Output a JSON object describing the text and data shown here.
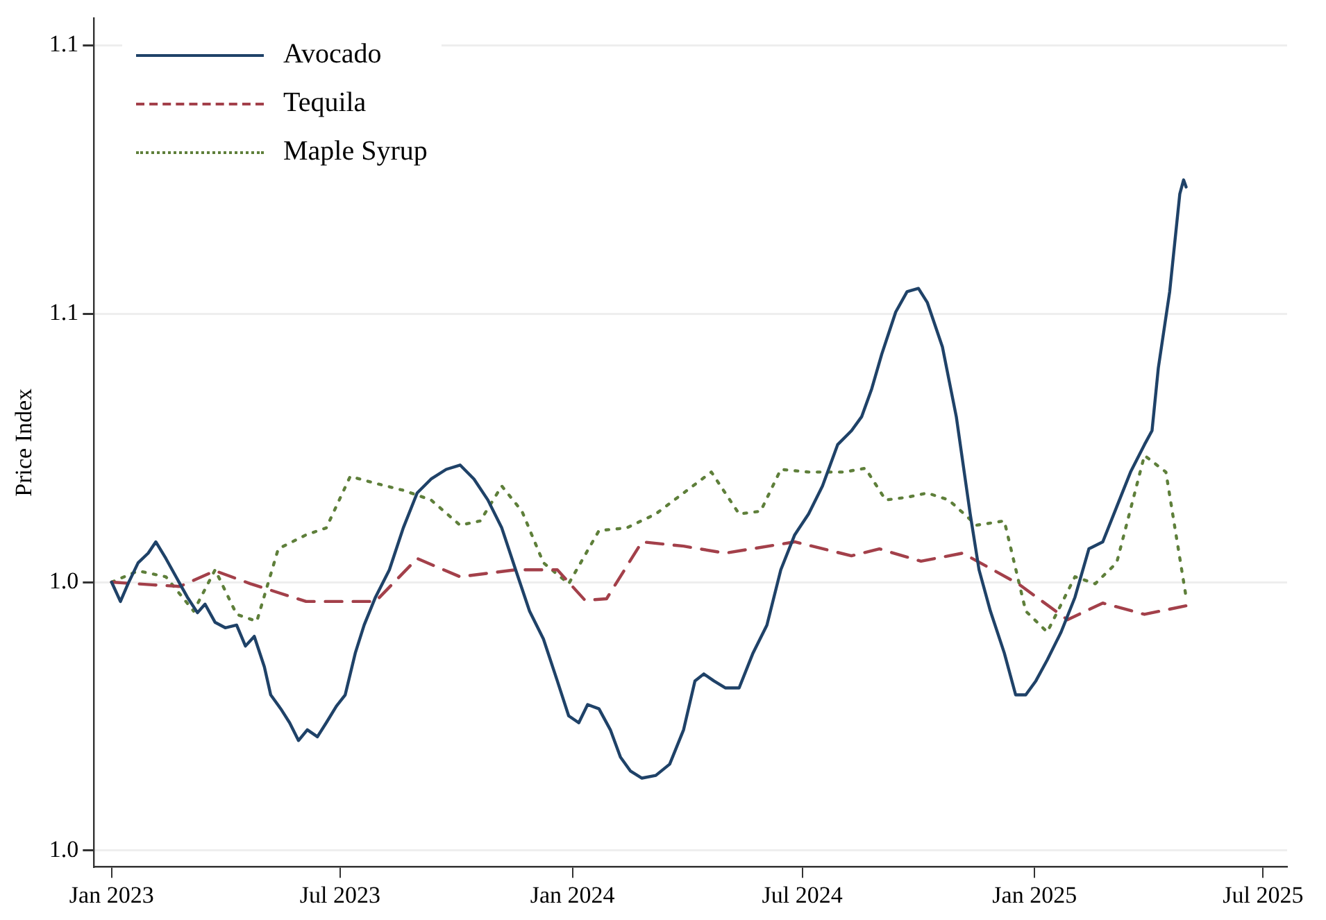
{
  "chart_data": {
    "type": "line",
    "ylabel": "Price Index",
    "xlim": [
      "2022-12-18",
      "2025-07-20"
    ],
    "xticks": [
      {
        "value": "2023-01-01",
        "label": "Jan 2023"
      },
      {
        "value": "2023-07-01",
        "label": "Jul 2023"
      },
      {
        "value": "2024-01-01",
        "label": "Jan 2024"
      },
      {
        "value": "2024-07-01",
        "label": "Jul 2024"
      },
      {
        "value": "2025-01-01",
        "label": "Jan 2025"
      },
      {
        "value": "2025-07-01",
        "label": "Jul 2025"
      }
    ],
    "ylim": [
      0.947,
      1.105
    ],
    "yticks": [
      {
        "value": 0.95,
        "label": "1.0"
      },
      {
        "value": 1.0,
        "label": "1.0"
      },
      {
        "value": 1.05,
        "label": "1.1"
      },
      {
        "value": 1.1,
        "label": "1.1"
      }
    ],
    "grid": "y",
    "legend": "top left",
    "marker": "none",
    "series": [
      {
        "name": "Avocado",
        "color": "#1f4268",
        "line_style": "solid",
        "x": [
          "2023-01-01",
          "2023-01-08",
          "2023-01-14",
          "2023-01-22",
          "2023-01-30",
          "2023-02-05",
          "2023-02-13",
          "2023-02-21",
          "2023-03-02",
          "2023-03-10",
          "2023-03-16",
          "2023-03-24",
          "2023-04-01",
          "2023-04-10",
          "2023-04-17",
          "2023-04-24",
          "2023-05-02",
          "2023-05-07",
          "2023-05-15",
          "2023-05-22",
          "2023-05-29",
          "2023-06-05",
          "2023-06-13",
          "2023-06-20",
          "2023-06-28",
          "2023-07-05",
          "2023-07-13",
          "2023-07-20",
          "2023-07-29",
          "2023-08-09",
          "2023-08-20",
          "2023-08-31",
          "2023-09-11",
          "2023-09-23",
          "2023-10-04",
          "2023-10-15",
          "2023-10-26",
          "2023-11-06",
          "2023-11-17",
          "2023-11-28",
          "2023-12-09",
          "2023-12-20",
          "2023-12-29",
          "2024-01-06",
          "2024-01-13",
          "2024-01-22",
          "2024-01-31",
          "2024-02-08",
          "2024-02-16",
          "2024-02-25",
          "2024-03-07",
          "2024-03-18",
          "2024-03-29",
          "2024-04-07",
          "2024-04-14",
          "2024-04-22",
          "2024-05-01",
          "2024-05-12",
          "2024-05-23",
          "2024-06-03",
          "2024-06-14",
          "2024-06-25",
          "2024-07-06",
          "2024-07-17",
          "2024-07-29",
          "2024-08-09",
          "2024-08-17",
          "2024-08-25",
          "2024-09-02",
          "2024-09-13",
          "2024-09-22",
          "2024-10-01",
          "2024-10-08",
          "2024-10-20",
          "2024-10-31",
          "2024-11-11",
          "2024-11-18",
          "2024-11-27",
          "2024-12-08",
          "2024-12-17",
          "2024-12-25",
          "2025-01-02",
          "2025-01-11",
          "2025-01-22",
          "2025-02-02",
          "2025-02-13",
          "2025-02-24",
          "2025-03-07",
          "2025-03-18",
          "2025-03-29",
          "2025-04-04",
          "2025-04-09",
          "2025-04-18",
          "2025-04-26",
          "2025-04-29",
          "2025-05-01"
        ],
        "values": [
          1.0,
          0.9964,
          0.9997,
          1.0036,
          1.0054,
          1.0075,
          1.0044,
          1.001,
          0.9972,
          0.9943,
          0.9959,
          0.9925,
          0.9915,
          0.992,
          0.9881,
          0.9899,
          0.9842,
          0.979,
          0.9764,
          0.9738,
          0.9705,
          0.9725,
          0.9712,
          0.9738,
          0.9769,
          0.979,
          0.9868,
          0.992,
          0.9972,
          1.0023,
          1.0101,
          1.0166,
          1.0192,
          1.021,
          1.0218,
          1.0192,
          1.0153,
          1.0101,
          1.0023,
          0.9946,
          0.9894,
          0.9816,
          0.9751,
          0.9738,
          0.9772,
          0.9764,
          0.9725,
          0.9674,
          0.9648,
          0.9635,
          0.964,
          0.9661,
          0.9725,
          0.9816,
          0.9829,
          0.9816,
          0.9803,
          0.9803,
          0.9868,
          0.992,
          1.0023,
          1.0088,
          1.0127,
          1.0179,
          1.0256,
          1.0282,
          1.0308,
          1.036,
          1.0425,
          1.0503,
          1.0541,
          1.0547,
          1.0521,
          1.0438,
          1.0308,
          1.0127,
          1.0023,
          0.9946,
          0.9868,
          0.979,
          0.979,
          0.9816,
          0.9855,
          0.9907,
          0.9972,
          1.0062,
          1.0075,
          1.014,
          1.0205,
          1.0256,
          1.0282,
          1.0399,
          1.0541,
          1.0723,
          1.0749,
          1.0736
        ]
      },
      {
        "name": "Tequila",
        "color": "#a3404a",
        "line_style": "dashed",
        "x": [
          "2023-01-01",
          "2023-02-02",
          "2023-02-24",
          "2023-03-24",
          "2023-04-21",
          "2023-06-04",
          "2023-07-29",
          "2023-08-31",
          "2023-10-04",
          "2023-11-17",
          "2023-12-20",
          "2024-01-11",
          "2024-01-28",
          "2024-02-25",
          "2024-03-29",
          "2024-05-01",
          "2024-06-25",
          "2024-08-09",
          "2024-08-31",
          "2024-10-03",
          "2024-11-05",
          "2024-12-19",
          "2025-01-27",
          "2025-02-24",
          "2025-03-29",
          "2025-05-01"
        ],
        "values": [
          1.0,
          0.9995,
          0.9992,
          1.0021,
          0.9997,
          0.9964,
          0.9964,
          1.0044,
          1.001,
          1.0023,
          1.0023,
          0.9966,
          0.9969,
          1.0075,
          1.0067,
          1.0054,
          1.0075,
          1.0049,
          1.0062,
          1.0039,
          1.0054,
          0.9997,
          0.993,
          0.9961,
          0.994,
          0.9956
        ]
      },
      {
        "name": "Maple Syrup",
        "color": "#5e7f3a",
        "line_style": "dotted",
        "x": [
          "2023-01-01",
          "2023-01-22",
          "2023-02-13",
          "2023-03-07",
          "2023-03-24",
          "2023-04-10",
          "2023-04-26",
          "2023-05-13",
          "2023-06-04",
          "2023-06-20",
          "2023-07-09",
          "2023-07-29",
          "2023-08-20",
          "2023-09-11",
          "2023-10-04",
          "2023-10-20",
          "2023-11-06",
          "2023-11-22",
          "2023-12-09",
          "2023-12-29",
          "2024-01-22",
          "2024-02-13",
          "2024-03-07",
          "2024-03-29",
          "2024-04-20",
          "2024-05-12",
          "2024-05-29",
          "2024-06-14",
          "2024-07-06",
          "2024-08-03",
          "2024-08-20",
          "2024-09-05",
          "2024-09-22",
          "2024-10-08",
          "2024-10-25",
          "2024-11-16",
          "2024-12-08",
          "2024-12-25",
          "2025-01-11",
          "2025-02-02",
          "2025-02-18",
          "2025-03-07",
          "2025-03-29",
          "2025-04-15",
          "2025-05-01"
        ],
        "values": [
          1.0,
          1.0021,
          1.001,
          0.9946,
          1.0023,
          0.994,
          0.9927,
          1.0062,
          1.0088,
          1.0101,
          1.0197,
          1.0184,
          1.0171,
          1.0153,
          1.0106,
          1.0114,
          1.0179,
          1.0132,
          1.0036,
          0.9997,
          1.0096,
          1.0101,
          1.0127,
          1.0166,
          1.0205,
          1.0127,
          1.0132,
          1.021,
          1.0205,
          1.0205,
          1.0212,
          1.0153,
          1.0158,
          1.0166,
          1.0153,
          1.0106,
          1.0114,
          0.9946,
          0.9907,
          1.001,
          0.9997,
          1.0036,
          1.0236,
          1.0205,
          0.9972
        ]
      }
    ]
  }
}
